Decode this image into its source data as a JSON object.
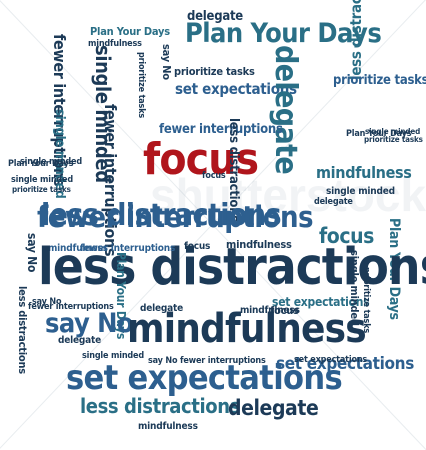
{
  "palette": {
    "dark": "#1c3a57",
    "teal": "#2a6f86",
    "blue": "#2d5f8f",
    "light": "#3e8fa8",
    "red": "#b0151c"
  },
  "watermark": "shutterstock",
  "words": [
    "delegate",
    "Plan Your Days",
    "mindfulness",
    "say No",
    "Plan Your Days",
    "prioritize tasks",
    "fewer interruptions",
    "single minded",
    "set expectations",
    "delegate",
    "prioritize tasks",
    "less distractions",
    "prioritize tasks",
    "fewer interruptions",
    "single minded",
    "focus",
    "fewer interruptions",
    "less distractions",
    "focus",
    "mindfulness",
    "single minded",
    "focus",
    "Plan Your Days",
    "less distractions",
    "say No",
    "mindfulness",
    "set expectations",
    "less distractions",
    "delegate",
    "mindfulness",
    "Plan Your Days",
    "single minded",
    "prioritize tasks",
    "fewer interruptions",
    "focus",
    "single minded",
    "less distractions",
    "say No",
    "fewer interruptions",
    "delegate",
    "single minded",
    "set expectations",
    "say No fewer interruptions",
    "mindfulness",
    "less distractions",
    "mindfulness",
    "Plan Your Days",
    "single minded",
    "delegate",
    "focus",
    "set expectations",
    "prioritize tasks",
    "mindfulness",
    "delegate",
    "Plan Your Days",
    "single minded",
    "fewer interruptions",
    "prioritize tasks",
    "say No",
    "set expectations"
  ]
}
